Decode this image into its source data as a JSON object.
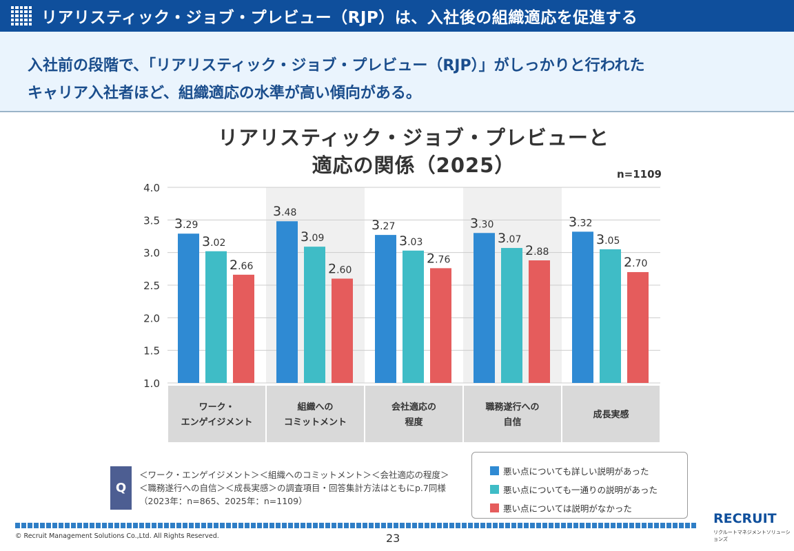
{
  "header": {
    "title": "リアリスティック・ジョブ・プレビュー（RJP）は、入社後の組織適応を促進する"
  },
  "summary": {
    "line1": "入社前の段階で、「リアリスティック・ジョブ・プレビュー（RJP）」がしっかりと行われた",
    "line2": "キャリア入社者ほど、組織適応の水準が高い傾向がある。"
  },
  "chart_data": {
    "type": "bar",
    "title_line1": "リアリスティック・ジョブ・プレビューと",
    "title_line2": "適応の関係（2025）",
    "note": "n=1109",
    "categories": [
      "ワーク・\nエンゲイジメント",
      "組織への\nコミットメント",
      "会社適応の\n程度",
      "職務遂行への\n自信",
      "成長実感"
    ],
    "series": [
      {
        "name": "悪い点についても詳しい説明があった",
        "color": "#2f8ad3",
        "values": [
          3.29,
          3.48,
          3.27,
          3.3,
          3.32
        ]
      },
      {
        "name": "悪い点についても一通りの説明があった",
        "color": "#3fbcc6",
        "values": [
          3.02,
          3.09,
          3.03,
          3.07,
          3.05
        ]
      },
      {
        "name": "悪い点については説明がなかった",
        "color": "#e55c5c",
        "values": [
          2.66,
          2.6,
          2.76,
          2.88,
          2.7
        ]
      }
    ],
    "ylim": [
      1.0,
      4.0
    ],
    "yticks": [
      "1.0",
      "1.5",
      "2.0",
      "2.5",
      "3.0",
      "3.5",
      "4.0"
    ],
    "grid": true,
    "legend": "bottom-right"
  },
  "question": {
    "badge": "Q",
    "line1": "＜ワーク・エンゲイジメント＞＜組織へのコミットメント＞＜会社適応の程度＞",
    "line2": "＜職務遂行への自信＞＜成長実感＞の調査項目・回答集計方法はともにp.7同様",
    "line3": "（2023年：n=865、2025年：n=1109）"
  },
  "footer": {
    "copyright": "© Recruit Management Solutions Co.,Ltd. All Rights Reserved.",
    "page": "23",
    "logo": "RECRUIT",
    "logo_sub": "リクルートマネジメントソリューションズ"
  }
}
